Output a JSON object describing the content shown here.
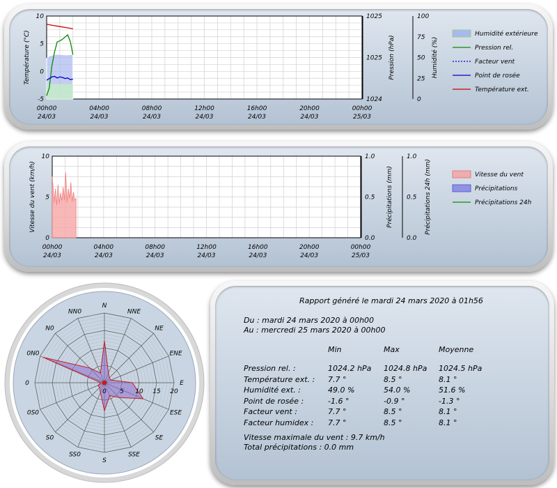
{
  "charts": {
    "x_ticks": [
      [
        "00h00",
        "24/03"
      ],
      [
        "04h00",
        "24/03"
      ],
      [
        "08h00",
        "24/03"
      ],
      [
        "12h00",
        "24/03"
      ],
      [
        "16h00",
        "24/03"
      ],
      [
        "20h00",
        "24/03"
      ],
      [
        "00h00",
        "25/03"
      ]
    ]
  },
  "chart_data": [
    {
      "type": "line",
      "title": "",
      "x_range_hours": [
        0,
        24
      ],
      "left_axis": {
        "label": "Température (°C)",
        "ylim": [
          -5,
          10
        ],
        "ticks": [
          "10",
          "5",
          "0",
          "-5"
        ]
      },
      "right_axis_1": {
        "label": "Pression (hPa)",
        "ylim": [
          1024,
          1025
        ],
        "ticks": [
          "1025",
          "1025",
          "1024"
        ]
      },
      "right_axis_2": {
        "label": "Humidité (%)",
        "ylim": [
          0,
          100
        ],
        "ticks": [
          "100",
          "75",
          "50",
          "25",
          "0"
        ]
      },
      "legend": [
        "Humidité extérieure",
        "Pression rel.",
        "Facteur vent",
        "Point de rosée",
        "Température ext."
      ],
      "legend_colors": [
        "#8ea7e8",
        "#0a8a0a",
        "#0000cc",
        "#0000cc",
        "#cc0000"
      ],
      "series": [
        {
          "name": "Température ext.",
          "axis": "left",
          "x": [
            0,
            0.5,
            1,
            1.5,
            2
          ],
          "y": [
            8.5,
            8.3,
            8.1,
            7.9,
            7.7
          ]
        },
        {
          "name": "Point de rosée",
          "axis": "left",
          "x": [
            0,
            0.2,
            0.4,
            0.6,
            0.8,
            1.0,
            1.2,
            1.4,
            1.6,
            1.8,
            2.0
          ],
          "y": [
            -1.6,
            -1.3,
            -1.0,
            -0.9,
            -1.2,
            -1.0,
            -1.1,
            -1.3,
            -1.2,
            -1.5,
            -1.4
          ]
        },
        {
          "name": "Pression rel.",
          "axis": "left",
          "x": [
            0,
            0.2,
            0.4,
            0.6,
            0.8,
            1.0,
            1.2,
            1.4,
            1.6,
            1.8,
            2.0
          ],
          "y": [
            -4.4,
            -3.0,
            1.0,
            3.5,
            5.3,
            5.5,
            5.8,
            6.2,
            6.6,
            5.4,
            3.0
          ]
        },
        {
          "name": "Humidité extérieure",
          "axis": "right2",
          "x": [
            0,
            0.2,
            0.5,
            0.8,
            1.2,
            1.6,
            2.0
          ],
          "y": [
            49,
            52,
            53,
            54,
            53.5,
            53,
            54
          ]
        }
      ]
    },
    {
      "type": "area",
      "left_axis": {
        "label": "Vitesse du vent (km/h)",
        "ylim": [
          0,
          10
        ],
        "ticks": [
          "10",
          "5",
          "0"
        ]
      },
      "right_axis_1": {
        "label": "Précipitations (mm)",
        "ylim": [
          0,
          1
        ],
        "ticks": [
          "1.0",
          "0.5",
          "0.0"
        ]
      },
      "right_axis_2": {
        "label": "Précipitations 24h (mm)",
        "ylim": [
          0,
          1
        ],
        "ticks": [
          "1.0",
          "0.5",
          "0.0"
        ]
      },
      "legend": [
        "Vitesse du vent",
        "Précipitations",
        "Précipitations 24h"
      ],
      "legend_colors": [
        "#f4a0a0",
        "#8080e8",
        "#0a8a0a"
      ],
      "series": [
        {
          "name": "Vitesse du vent",
          "x": [
            0,
            0.05,
            0.15,
            0.25,
            0.35,
            0.45,
            0.55,
            0.65,
            0.75,
            0.85,
            0.95,
            1.05,
            1.15,
            1.25,
            1.35,
            1.45,
            1.55,
            1.65,
            1.75,
            1.85
          ],
          "y": [
            7.5,
            6.5,
            4.3,
            6.0,
            4.0,
            6.5,
            4.2,
            5.5,
            4.5,
            6.2,
            4.6,
            8.0,
            4.3,
            6.0,
            4.8,
            6.8,
            4.4,
            5.6,
            4.6,
            4.8
          ]
        },
        {
          "name": "Précipitations",
          "x": [
            0,
            2
          ],
          "y": [
            0.0,
            0.0
          ]
        },
        {
          "name": "Précipitations 24h",
          "x": [
            0,
            2
          ],
          "y": [
            0.0,
            0.0
          ]
        }
      ]
    },
    {
      "type": "radar",
      "directions": [
        "N",
        "NNE",
        "NE",
        "ENE",
        "E",
        "ESE",
        "SE",
        "SSE",
        "S",
        "SSO",
        "SO",
        "OSO",
        "O",
        "ONO",
        "NO",
        "NNO"
      ],
      "direction_labels": [
        "N",
        "NNE",
        "NE",
        "ENE",
        "E",
        "ESE",
        "SE",
        "SSE",
        "S",
        "SS0",
        "S0",
        "0S0",
        "0",
        "0N0",
        "N0",
        "NN0"
      ],
      "ring_labels": [
        "0",
        "5",
        "10",
        "15",
        "20"
      ],
      "rmax": 20,
      "values": [
        12,
        3,
        2,
        2,
        8,
        12,
        6,
        4,
        8,
        3,
        2,
        2,
        1,
        19,
        6,
        3
      ]
    }
  ],
  "report": {
    "title": "Rapport généré le mardi 24 mars 2020 à 01h56",
    "from": "Du : mardi 24 mars 2020 à 00h00",
    "to": "Au : mercredi 25 mars 2020 à 00h00",
    "headers": [
      "Min",
      "Max",
      "Moyenne"
    ],
    "rows": [
      [
        "Pression rel. :",
        "1024.2 hPa",
        "1024.8 hPa",
        "1024.5 hPa"
      ],
      [
        "Température ext. :",
        "7.7 °",
        "8.5 °",
        "8.1 °"
      ],
      [
        "Humidité ext. :",
        "49.0 %",
        "54.0 %",
        "51.6 %"
      ],
      [
        "Point de rosée :",
        "-1.6 °",
        "-0.9 °",
        "-1.3 °"
      ],
      [
        "Facteur vent :",
        "7.7 °",
        "8.5 °",
        "8.1 °"
      ],
      [
        "Facteur humidex :",
        "7.7 °",
        "8.5 °",
        "8.1 °"
      ]
    ],
    "wind_max": "Vitesse maximale du vent : 9.7 km/h",
    "rain_total": "Total précipitations : 0.0 mm"
  }
}
